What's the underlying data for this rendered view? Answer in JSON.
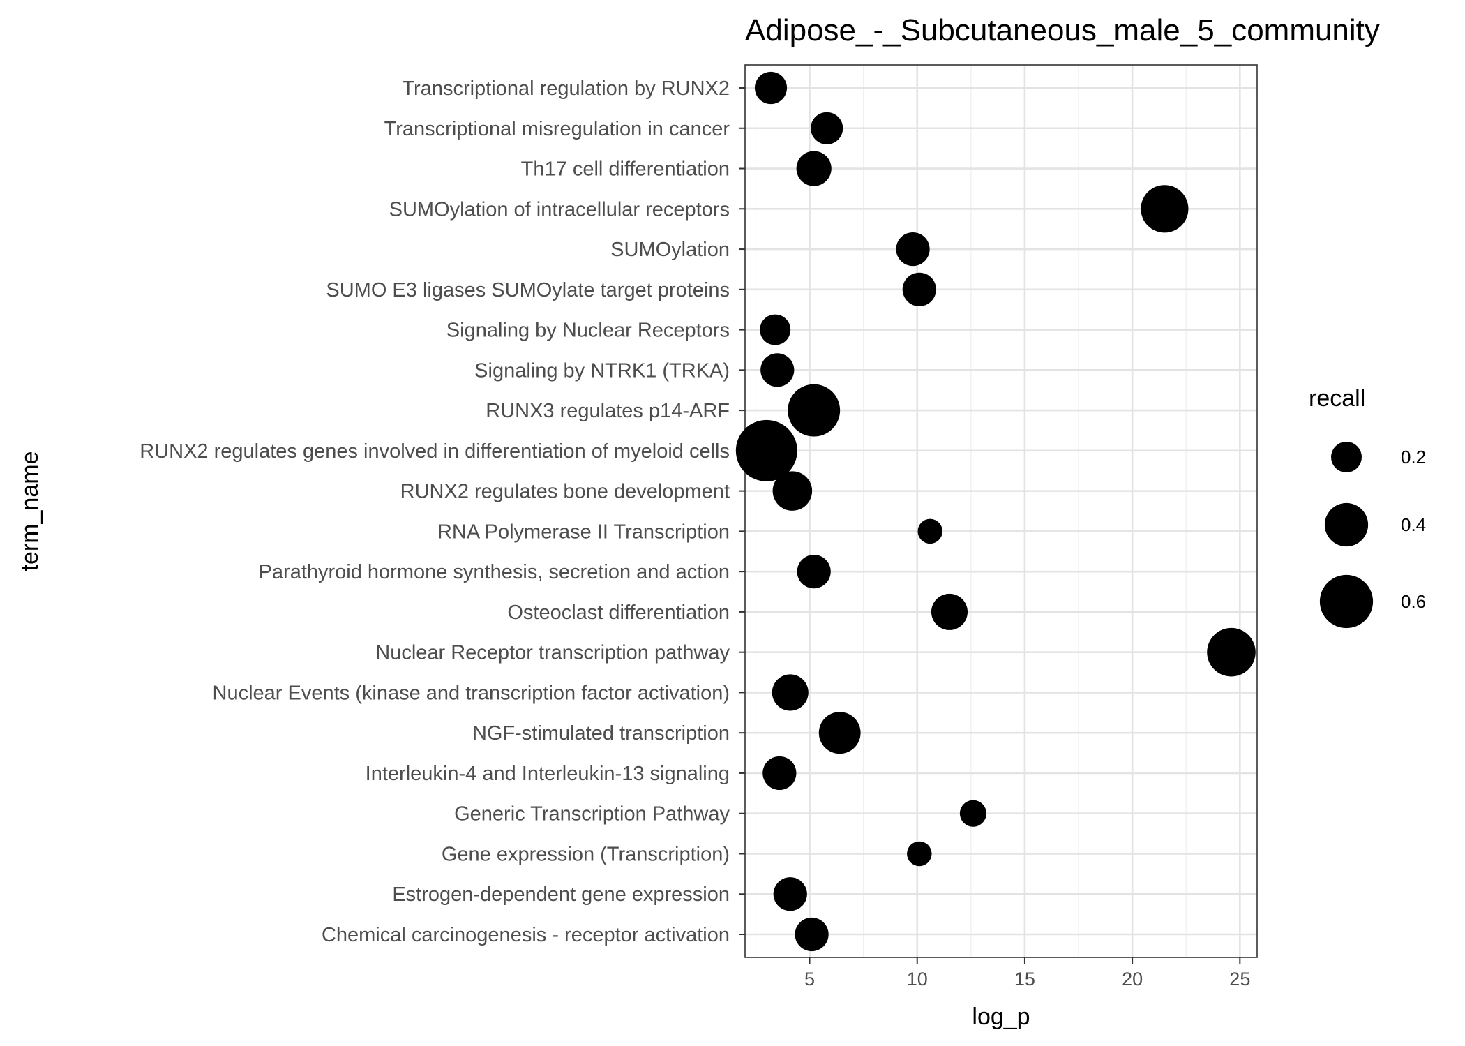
{
  "chart_data": {
    "type": "scatter",
    "title": "Adipose_-_Subcutaneous_male_5_community",
    "xlabel": "log_p",
    "ylabel": "term_name",
    "xlim": [
      2.0,
      25.8
    ],
    "x_ticks": [
      5,
      10,
      15,
      20,
      25
    ],
    "grid": true,
    "point_color": "#000000",
    "legend": {
      "title": "recall",
      "position": "right",
      "entries": [
        0.2,
        0.4,
        0.6
      ]
    },
    "points": [
      {
        "term": "Transcriptional regulation by RUNX2",
        "log_p": 3.2,
        "recall": 0.22
      },
      {
        "term": "Transcriptional misregulation in cancer",
        "log_p": 5.8,
        "recall": 0.22
      },
      {
        "term": "Th17 cell differentiation",
        "log_p": 5.2,
        "recall": 0.26
      },
      {
        "term": "SUMOylation of intracellular receptors",
        "log_p": 21.5,
        "recall": 0.48
      },
      {
        "term": "SUMOylation",
        "log_p": 9.8,
        "recall": 0.24
      },
      {
        "term": "SUMO E3 ligases SUMOylate target proteins",
        "log_p": 10.1,
        "recall": 0.24
      },
      {
        "term": "Signaling by Nuclear Receptors",
        "log_p": 3.4,
        "recall": 0.2
      },
      {
        "term": "Signaling by NTRK1 (TRKA)",
        "log_p": 3.5,
        "recall": 0.24
      },
      {
        "term": "RUNX3 regulates p14-ARF",
        "log_p": 5.2,
        "recall": 0.58
      },
      {
        "term": "RUNX2 regulates genes involved in differentiation of myeloid cells",
        "log_p": 3.0,
        "recall": 0.8
      },
      {
        "term": "RUNX2 regulates bone development",
        "log_p": 4.2,
        "recall": 0.33
      },
      {
        "term": "RNA Polymerase II Transcription",
        "log_p": 10.6,
        "recall": 0.13
      },
      {
        "term": "Parathyroid hormone synthesis, secretion and action",
        "log_p": 5.2,
        "recall": 0.24
      },
      {
        "term": "Osteoclast differentiation",
        "log_p": 11.5,
        "recall": 0.28
      },
      {
        "term": "Nuclear Receptor transcription pathway",
        "log_p": 24.6,
        "recall": 0.5
      },
      {
        "term": "Nuclear Events (kinase and transcription factor activation)",
        "log_p": 4.1,
        "recall": 0.28
      },
      {
        "term": "NGF-stimulated transcription",
        "log_p": 6.4,
        "recall": 0.37
      },
      {
        "term": "Interleukin-4 and Interleukin-13 signaling",
        "log_p": 3.6,
        "recall": 0.24
      },
      {
        "term": "Generic Transcription Pathway",
        "log_p": 12.6,
        "recall": 0.15
      },
      {
        "term": "Gene expression (Transcription)",
        "log_p": 10.1,
        "recall": 0.13
      },
      {
        "term": "Estrogen-dependent gene expression",
        "log_p": 4.1,
        "recall": 0.24
      },
      {
        "term": "Chemical carcinogenesis - receptor activation",
        "log_p": 5.1,
        "recall": 0.24
      }
    ]
  }
}
